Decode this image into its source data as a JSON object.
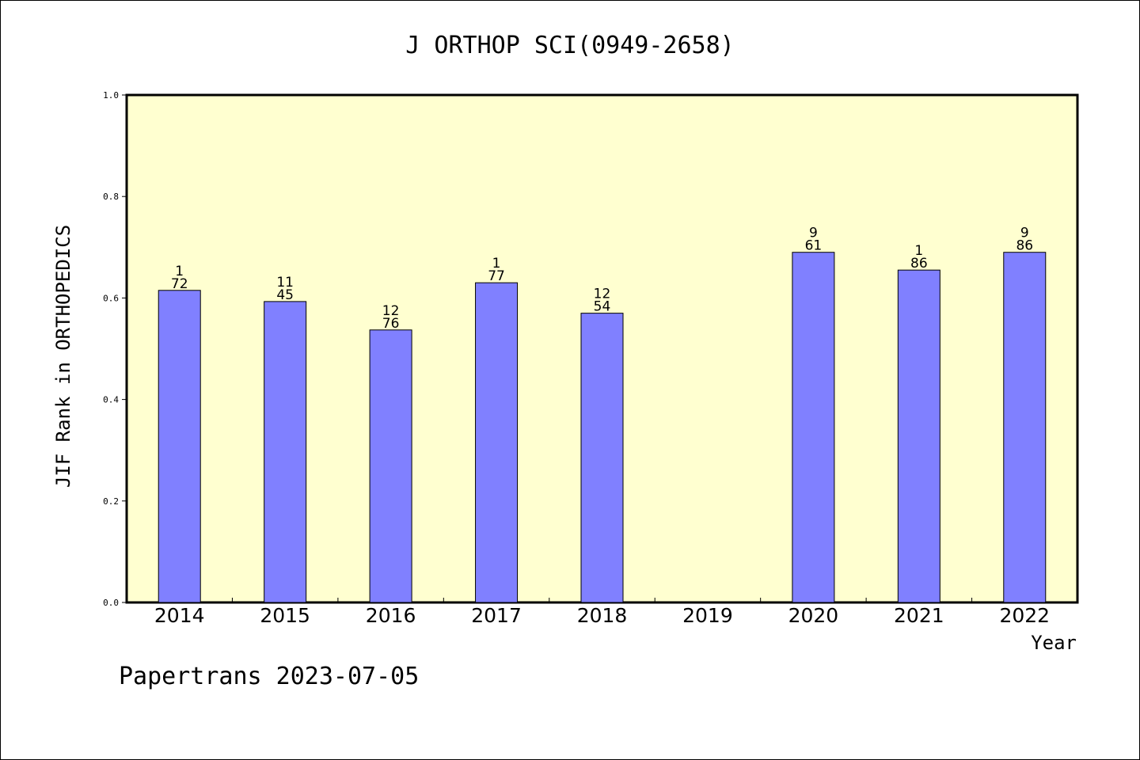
{
  "chart_data": {
    "type": "bar",
    "title": "J ORTHOP SCI(0949-2658)",
    "ylabel": "JIF Rank in ORTHOPEDICS",
    "xlabel": "Year",
    "ylim": [
      0,
      1.0
    ],
    "yticks": [
      "0.0",
      "0.2",
      "0.4",
      "0.6",
      "0.8",
      "1.0"
    ],
    "categories": [
      "2014",
      "2015",
      "2016",
      "2017",
      "2018",
      "2019",
      "2020",
      "2021",
      "2022"
    ],
    "values": [
      0.615,
      0.593,
      0.537,
      0.63,
      0.57,
      null,
      0.69,
      0.655,
      0.69
    ],
    "labels": [
      [
        "1",
        "72"
      ],
      [
        "11",
        "45"
      ],
      [
        "12",
        "76"
      ],
      [
        "1",
        "77"
      ],
      [
        "12",
        "54"
      ],
      null,
      [
        "9",
        "61"
      ],
      [
        "1",
        "86"
      ],
      [
        "9",
        "86"
      ]
    ],
    "colors": {
      "plot_background": "#ffffd0",
      "bar": "#8080ff",
      "axis": "#000000"
    },
    "grid": false
  },
  "footer": "Papertrans 2023-07-05"
}
